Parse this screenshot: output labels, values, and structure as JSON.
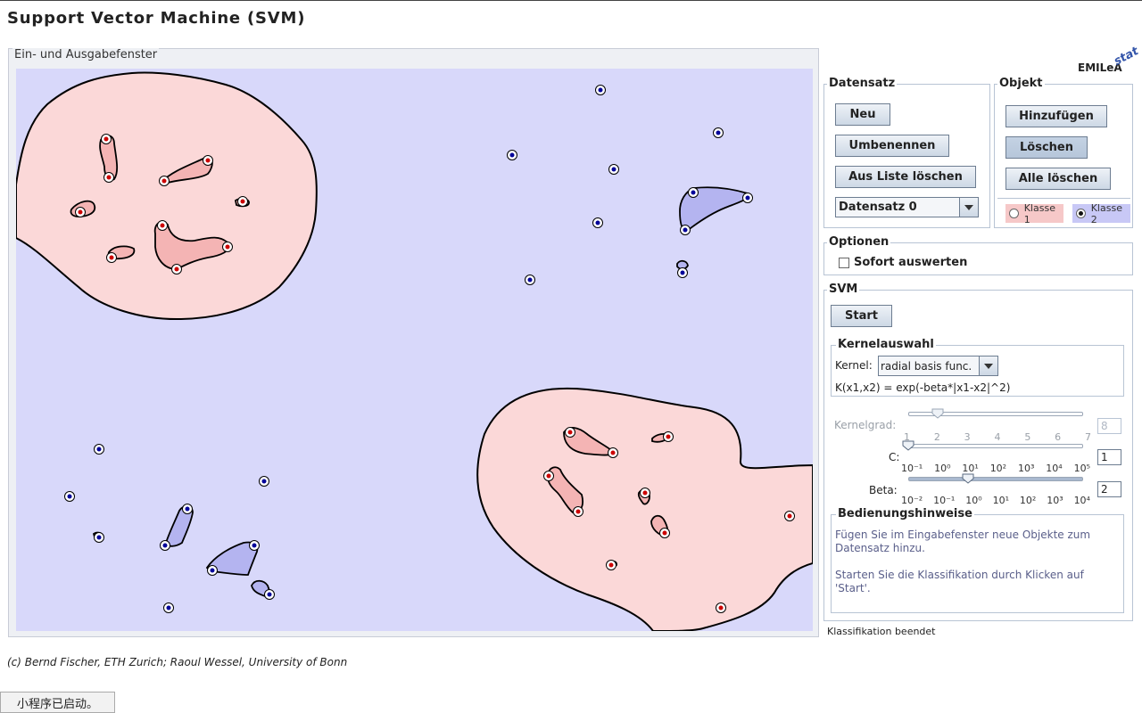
{
  "app": {
    "title": "Support Vector Machine (SVM)",
    "logo_text": "EMILeA",
    "logo_super": "stat"
  },
  "io": {
    "legend": "Ein- und Ausgabefenster"
  },
  "datensatz": {
    "label": "Datensatz",
    "new_label": "Neu",
    "rename_label": "Umbenennen",
    "remove_label": "Aus Liste löschen",
    "selected": "Datensatz 0"
  },
  "objekt": {
    "label": "Objekt",
    "add_label": "Hinzufügen",
    "delete_label": "Löschen",
    "delete_all_label": "Alle löschen",
    "class1_label": "Klasse 1",
    "class2_label": "Klasse 2",
    "class1_color": "#f6c8c8",
    "class2_color": "#c8c8f6",
    "selected_class": "Klasse 2"
  },
  "optionen": {
    "label": "Optionen",
    "sofort_label": "Sofort auswerten",
    "sofort_checked": false
  },
  "svm": {
    "label": "SVM",
    "start_label": "Start",
    "kernel_group_label": "Kernelauswahl",
    "kernel_label": "Kernel:",
    "kernel_value": "radial basis func.",
    "formula": "K(x1,x2) = exp(-beta*|x1-x2|^2)",
    "kernelgrad": {
      "label": "Kernelgrad:",
      "value": "8",
      "ticks": [
        "1",
        "2",
        "3",
        "4",
        "5",
        "6",
        "7"
      ],
      "level": 0.17
    },
    "c": {
      "label": "C:",
      "value": "1",
      "ticks": [
        "10⁻¹",
        "10⁰",
        "10¹",
        "10²",
        "10³",
        "10⁴",
        "10⁵"
      ],
      "level": 0.0
    },
    "beta": {
      "label": "Beta:",
      "value": "2",
      "ticks": [
        "10⁻²",
        "10⁻¹",
        "10⁰",
        "10¹",
        "10²",
        "10³",
        "10⁴"
      ],
      "level": 0.34
    }
  },
  "hints": {
    "label": "Bedienungshinweise",
    "line1": "Fügen Sie im Eingabefenster neue Objekte zum Datensatz hinzu.",
    "line2": "Starten Sie die Klassifikation durch Klicken auf 'Start'."
  },
  "status": {
    "text": "Klassifikation beendet"
  },
  "footer": {
    "credit": "(c) Bernd Fischer, ETH Zurich; Raoul Wessel, University of Bonn",
    "applet_status": "小程序已启动。"
  },
  "colors": {
    "canvas_bg": "#d8d8fa",
    "class1_region": "#fbd8d8",
    "class1_island": "#f4b4b4",
    "class2_island": "#b4b4f0",
    "class1_point": "#cc0000",
    "class2_point": "#000099"
  }
}
